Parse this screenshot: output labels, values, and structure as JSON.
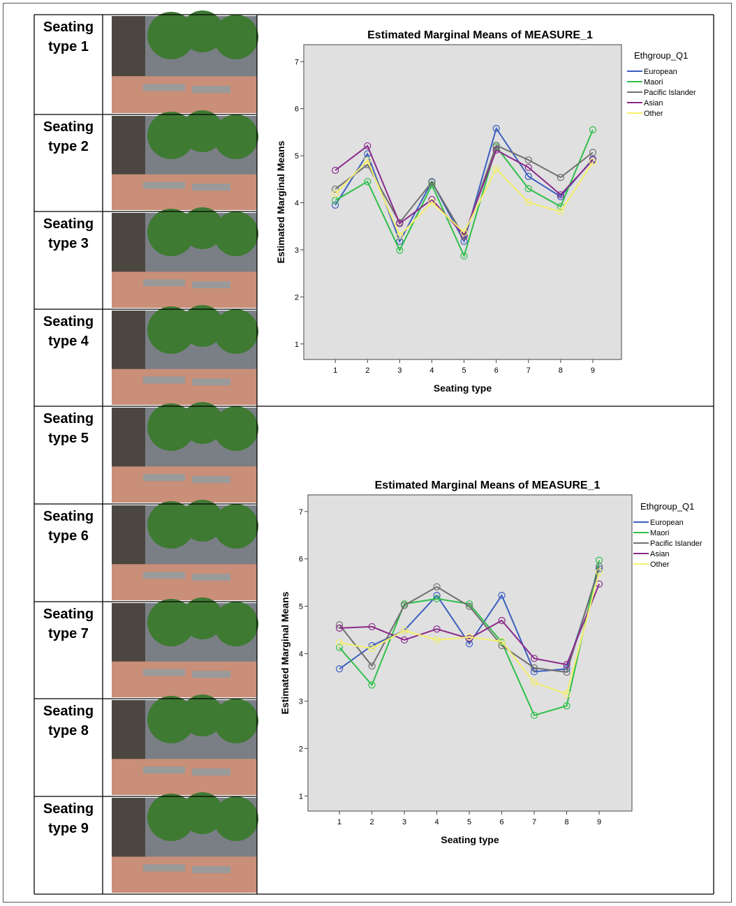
{
  "rows": [
    "Seating type 1",
    "Seating type 2",
    "Seating type 3",
    "Seating type 4",
    "Seating type 5",
    "Seating type 6",
    "Seating type 7",
    "Seating type 8",
    "Seating type 9"
  ],
  "chart_data": [
    {
      "type": "line",
      "title": "Estimated Marginal Means of MEASURE_1",
      "x_label": "Seating type",
      "y_label": "Estimated Marginal Means",
      "legend_title": "Ethgroup_Q1",
      "legend": "right",
      "x": [
        1,
        2,
        3,
        4,
        5,
        6,
        7,
        8,
        9
      ],
      "xlim": [
        0.02,
        9.89
      ],
      "xticks": [
        1,
        2,
        3,
        4,
        5,
        6,
        7,
        8,
        9
      ],
      "ylim": [
        0.67,
        7.36
      ],
      "yticks": [
        1,
        2,
        3,
        4,
        5,
        6,
        7
      ],
      "series": [
        {
          "name": "European",
          "color": "#3b5ec0",
          "values": [
            3.95,
            5.04,
            3.18,
            4.45,
            3.18,
            5.58,
            4.56,
            4.13,
            4.93
          ]
        },
        {
          "name": "Maori",
          "color": "#2fbf4a",
          "values": [
            4.05,
            4.45,
            2.99,
            4.38,
            2.87,
            5.19,
            4.3,
            3.92,
            5.55
          ]
        },
        {
          "name": "Pacific Islander",
          "color": "#707070",
          "values": [
            4.29,
            4.81,
            3.58,
            4.44,
            3.28,
            5.22,
            4.91,
            4.54,
            5.07
          ]
        },
        {
          "name": "Asian",
          "color": "#8a2a8a",
          "values": [
            4.69,
            5.21,
            3.56,
            4.07,
            3.31,
            5.12,
            4.75,
            4.17,
            4.91
          ]
        },
        {
          "name": "Other",
          "color": "#f5f06a",
          "values": [
            4.19,
            4.9,
            3.3,
            4.01,
            3.37,
            4.72,
            4.01,
            3.81,
            4.87
          ]
        }
      ]
    },
    {
      "type": "line",
      "title": "Estimated Marginal Means of MEASURE_1",
      "x_label": "Seating type",
      "y_label": "Estimated Marginal Means",
      "legend_title": "Ethgroup_Q1",
      "legend": "right",
      "x": [
        1,
        2,
        3,
        4,
        5,
        6,
        7,
        8,
        9
      ],
      "xlim": [
        0.03,
        10.01
      ],
      "xticks": [
        1,
        2,
        3,
        4,
        5,
        6,
        7,
        8,
        9
      ],
      "ylim": [
        0.68,
        7.35
      ],
      "yticks": [
        1,
        2,
        3,
        4,
        5,
        6,
        7
      ],
      "series": [
        {
          "name": "European",
          "color": "#3b5ec0",
          "values": [
            3.68,
            4.17,
            4.49,
            5.23,
            4.21,
            5.23,
            3.62,
            3.68,
            5.79
          ]
        },
        {
          "name": "Maori",
          "color": "#2fbf4a",
          "values": [
            4.13,
            3.34,
            5.05,
            5.16,
            5.05,
            4.24,
            2.7,
            2.9,
            5.97
          ]
        },
        {
          "name": "Pacific Islander",
          "color": "#707070",
          "values": [
            4.61,
            3.74,
            5.02,
            5.41,
            5.0,
            4.17,
            3.7,
            3.61,
            5.84
          ]
        },
        {
          "name": "Asian",
          "color": "#8a2a8a",
          "values": [
            4.54,
            4.57,
            4.29,
            4.52,
            4.32,
            4.7,
            3.9,
            3.77,
            5.47
          ]
        },
        {
          "name": "Other",
          "color": "#f5f06a",
          "values": [
            4.23,
            4.11,
            4.49,
            4.29,
            4.35,
            4.26,
            3.39,
            3.15,
            5.72
          ]
        }
      ]
    }
  ]
}
